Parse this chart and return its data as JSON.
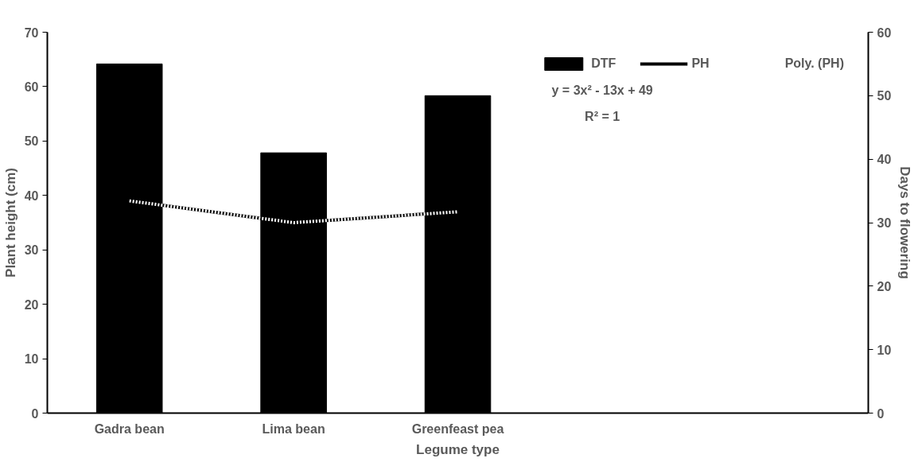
{
  "chart_data": {
    "type": "bar",
    "xlabel": "Legume type",
    "ylabel": "Plant height (cm)",
    "y2label": "Days to flowering",
    "categories": [
      "Gadra bean",
      "Lima bean",
      "Greenfeast pea",
      null,
      null
    ],
    "series": [
      {
        "name": "DTF",
        "axis": "y2",
        "color": "#000000",
        "values": [
          55,
          41,
          50,
          null,
          null
        ]
      },
      {
        "name": "PH",
        "type": "line",
        "color": "#000000",
        "values": [
          39,
          35,
          37,
          null,
          null
        ]
      },
      {
        "name": "Poly. (PH)",
        "type": "line",
        "color": "#ffffff",
        "line_style": "dotted",
        "values": [
          39,
          35,
          37,
          null,
          null
        ]
      }
    ],
    "annotations": [
      "y = 3x² - 13x + 49",
      "R² = 1"
    ],
    "ylim": [
      0,
      70
    ],
    "yticks": [
      0,
      10,
      20,
      30,
      40,
      50,
      60,
      70
    ],
    "y2lim": [
      0,
      60
    ],
    "y2ticks": [
      0,
      10,
      20,
      30,
      40,
      50,
      60
    ],
    "grid": false,
    "legend": "top right"
  }
}
